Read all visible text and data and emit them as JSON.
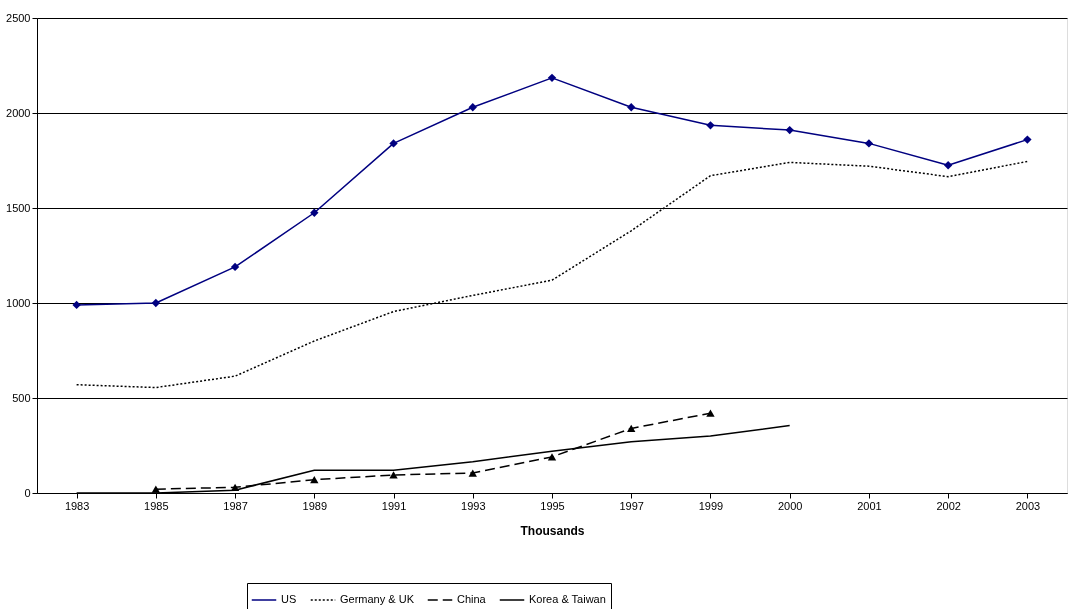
{
  "chart_data": {
    "type": "line",
    "xlabel": "Thousands",
    "categories": [
      "1983",
      "1985",
      "1987",
      "1989",
      "1991",
      "1993",
      "1995",
      "1997",
      "1999",
      "2000",
      "2001",
      "2002",
      "2003"
    ],
    "series": [
      {
        "name": "US",
        "color": "#000080",
        "marker": "diamond",
        "line_style": "solid",
        "values": [
          990,
          1000,
          1190,
          1475,
          1840,
          2030,
          2185,
          2030,
          1935,
          1910,
          1840,
          1725,
          1860
        ]
      },
      {
        "name": "Germany & UK",
        "color": "#000000",
        "marker": "none",
        "line_style": "dotted",
        "values": [
          570,
          555,
          615,
          800,
          955,
          1040,
          1120,
          1380,
          1670,
          1740,
          1720,
          1665,
          1745
        ]
      },
      {
        "name": "China",
        "color": "#000000",
        "marker": "triangle",
        "line_style": "dashed",
        "values": [
          null,
          20,
          30,
          70,
          95,
          105,
          190,
          340,
          420,
          null,
          null,
          null,
          null
        ]
      },
      {
        "name": "Korea & Taiwan",
        "color": "#000000",
        "marker": "none",
        "line_style": "solid",
        "values": [
          0,
          0,
          15,
          120,
          120,
          165,
          220,
          270,
          300,
          355,
          null,
          null,
          null
        ]
      }
    ],
    "ylim": [
      0,
      2500
    ],
    "yticks": [
      0,
      500,
      1000,
      1500,
      2000,
      2500
    ],
    "grid": "y",
    "legend": "bottom"
  }
}
